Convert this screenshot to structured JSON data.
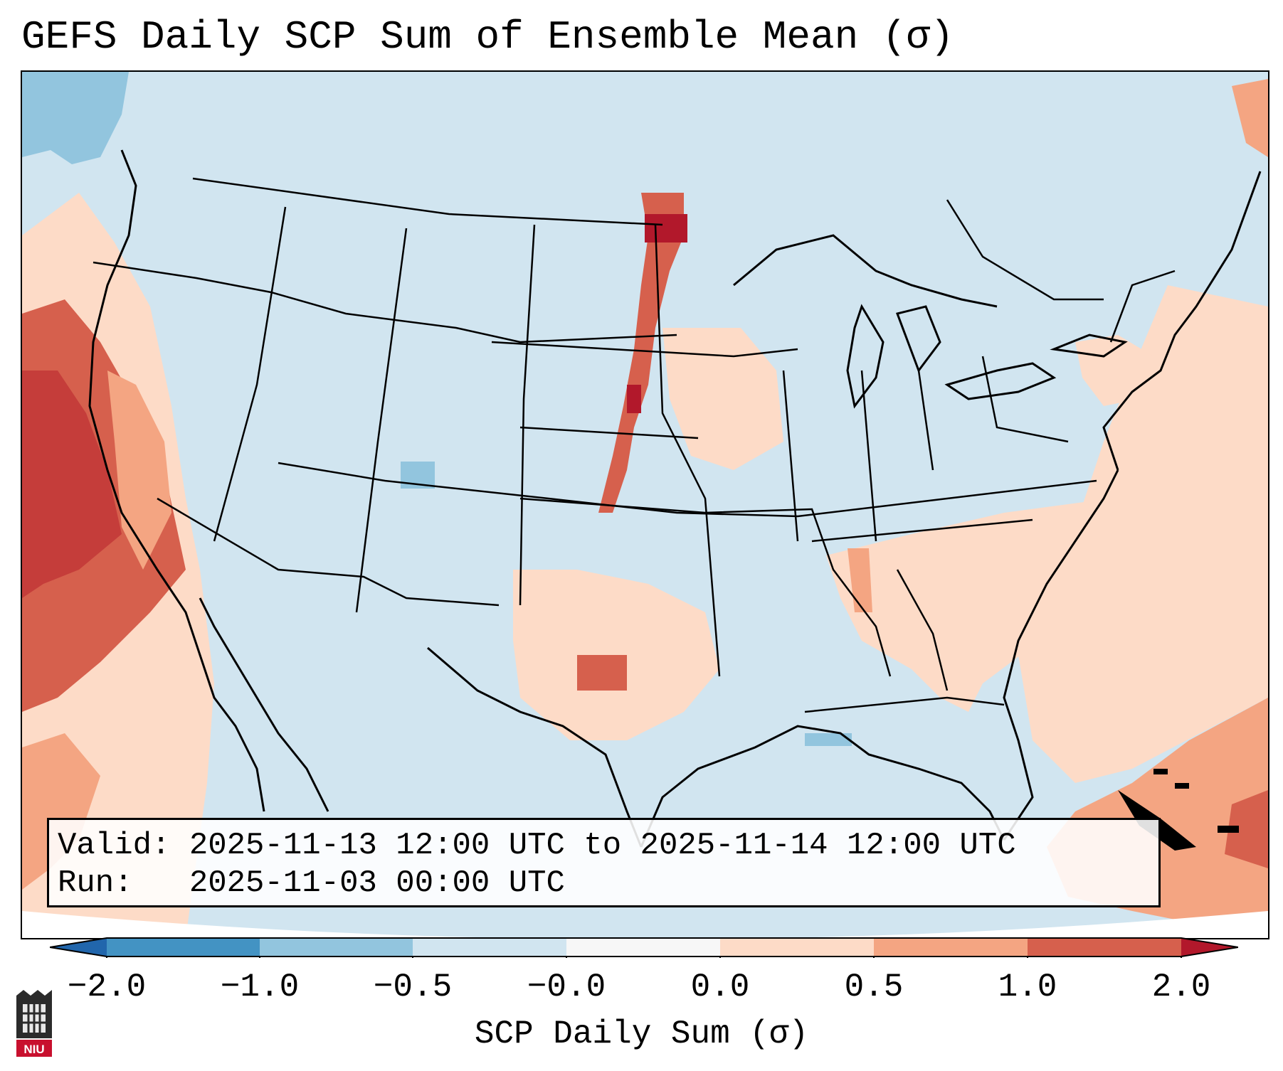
{
  "title": "GEFS Daily SCP Sum of Ensemble Mean (σ)",
  "info_box": {
    "valid_label": "Valid:",
    "valid_value": "2025-11-13 12:00 UTC to 2025-11-14 12:00 UTC",
    "run_label": "Run:",
    "run_value": "2025-11-03 00:00 UTC"
  },
  "colorbar": {
    "label": "SCP Daily Sum (σ)",
    "ticks": [
      "−2.0",
      "−1.0",
      "−0.5",
      "−0.0",
      "0.0",
      "0.5",
      "1.0",
      "2.0"
    ],
    "colors": [
      "#4393c3",
      "#92c5de",
      "#d1e5f0",
      "#f7f7f7",
      "#fddbc7",
      "#f4a582",
      "#d6604d",
      "#b2182b",
      "#2166ac",
      "#67001f"
    ]
  },
  "logo": {
    "text": "NIU",
    "icon": "university-shield-icon"
  }
}
